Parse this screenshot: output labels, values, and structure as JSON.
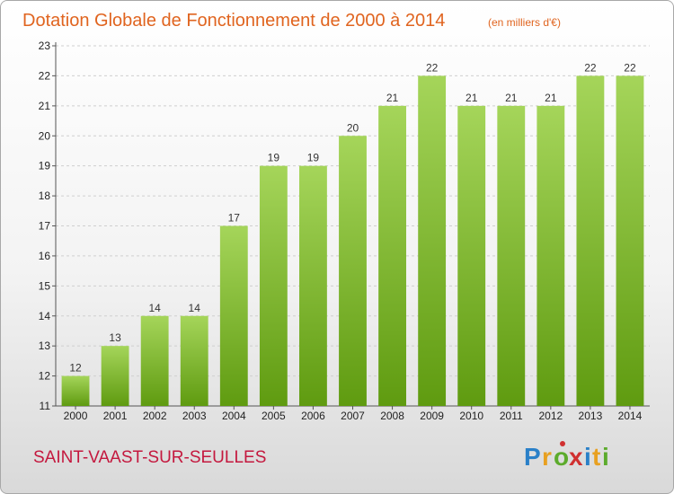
{
  "chart_data": {
    "type": "bar",
    "title": "Dotation Globale de Fonctionnement de 2000 à 2014",
    "subtitle": "(en milliers d'€)",
    "xlabel": "",
    "ylabel": "",
    "categories": [
      "2000",
      "2001",
      "2002",
      "2003",
      "2004",
      "2005",
      "2006",
      "2007",
      "2008",
      "2009",
      "2010",
      "2011",
      "2012",
      "2013",
      "2014"
    ],
    "values": [
      12,
      13,
      14,
      14,
      17,
      19,
      19,
      20,
      21,
      22,
      21,
      21,
      21,
      22,
      22
    ],
    "data_labels": [
      "12",
      "13",
      "14",
      "14",
      "17",
      "19",
      "19",
      "20",
      "21",
      "22",
      "21",
      "21",
      "21",
      "22",
      "22"
    ],
    "ylim": [
      11,
      23
    ],
    "yticks": [
      11,
      12,
      13,
      14,
      15,
      16,
      17,
      18,
      19,
      20,
      21,
      22,
      23
    ],
    "ytick_labels": [
      "11",
      "12",
      "13",
      "14",
      "15",
      "16",
      "17",
      "18",
      "19",
      "20",
      "21",
      "22",
      "23"
    ],
    "grid": true,
    "bar_color_top": "#a5d55a",
    "bar_color_bottom": "#5f9b10"
  },
  "commune": "SAINT-VAAST-SUR-SEULLES",
  "logo": {
    "letters": [
      "P",
      "r",
      "o",
      "x",
      "i",
      "t",
      "i"
    ],
    "colors": [
      "#2a80c8",
      "#e8a020",
      "#5cab2c",
      "#d03030",
      "#2a80c8",
      "#e8a020",
      "#5cab2c"
    ],
    "dot_color": "#d03030"
  }
}
